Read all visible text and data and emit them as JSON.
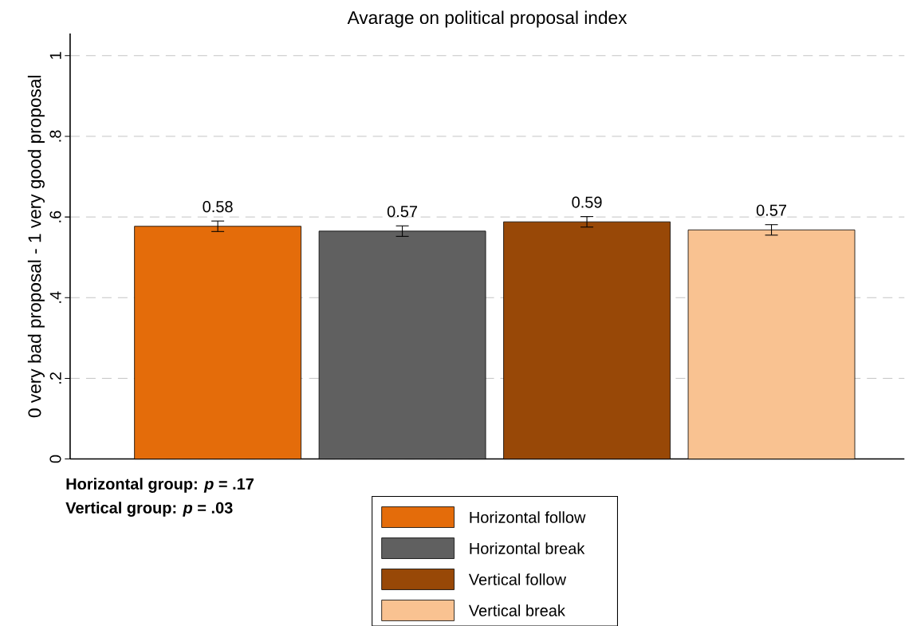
{
  "chart_data": {
    "type": "bar",
    "title": "Avarage on political proposal index",
    "ylabel": "0 very bad proposal - 1 very good proposal",
    "categories": [
      null
    ],
    "series": [
      {
        "name": "Horizontal follow",
        "color": "#e46c0a",
        "values": [
          0.577
        ],
        "errors": [
          0.013
        ],
        "value_labels": [
          "0.58"
        ]
      },
      {
        "name": "Horizontal break",
        "color": "#606060",
        "values": [
          0.565
        ],
        "errors": [
          0.013
        ],
        "value_labels": [
          "0.57"
        ]
      },
      {
        "name": "Vertical follow",
        "color": "#984807",
        "values": [
          0.588
        ],
        "errors": [
          0.013
        ],
        "value_labels": [
          "0.59"
        ]
      },
      {
        "name": "Vertical break",
        "color": "#f9c291",
        "values": [
          0.568
        ],
        "errors": [
          0.013
        ],
        "value_labels": [
          "0.57"
        ]
      }
    ],
    "ylim": [
      0,
      1.055
    ],
    "yticks": [
      0,
      {
        "value": 0.2,
        "label": ".2"
      },
      {
        "value": 0.4,
        "label": ".4"
      },
      {
        "value": 0.6,
        "label": ".6"
      },
      {
        "value": 0.8,
        "label": ".8"
      },
      1
    ],
    "grid": "y",
    "legend": "bottom",
    "annotations": [
      "Horizontal group: *p* = .17",
      "Vertical group: *p* = .03"
    ]
  }
}
